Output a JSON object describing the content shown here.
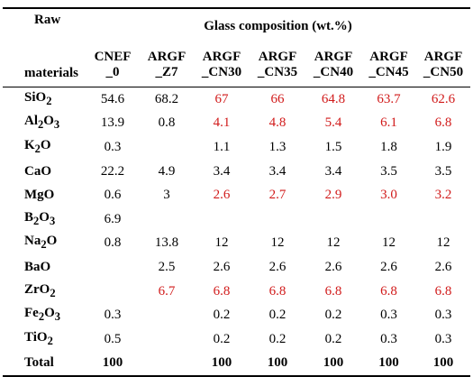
{
  "header": {
    "raw_line1": "Raw",
    "raw_line2": "materials",
    "group_title": "Glass composition (wt.%)",
    "columns": [
      [
        "CNEF",
        "_0"
      ],
      [
        "ARGF",
        "_Z7"
      ],
      [
        "ARGF",
        "_CN30"
      ],
      [
        "ARGF",
        "_CN35"
      ],
      [
        "ARGF",
        "_CN40"
      ],
      [
        "ARGF",
        "_CN45"
      ],
      [
        "ARGF",
        "_CN50"
      ]
    ]
  },
  "rows": [
    {
      "base": "SiO",
      "sub": "2",
      "values": [
        "54.6",
        "68.2",
        "67",
        "66",
        "64.8",
        "63.7",
        "62.6"
      ],
      "red": [
        false,
        false,
        true,
        true,
        true,
        true,
        true
      ]
    },
    {
      "base": "Al",
      "sub": "2",
      "base2": "O",
      "sub2": "3",
      "values": [
        "13.9",
        "0.8",
        "4.1",
        "4.8",
        "5.4",
        "6.1",
        "6.8"
      ],
      "red": [
        false,
        false,
        true,
        true,
        true,
        true,
        true
      ]
    },
    {
      "base": "K",
      "sub": "2",
      "base2": "O",
      "values": [
        "0.3",
        "",
        "1.1",
        "1.3",
        "1.5",
        "1.8",
        "1.9"
      ],
      "red": [
        false,
        false,
        false,
        false,
        false,
        false,
        false
      ]
    },
    {
      "base": "CaO",
      "values": [
        "22.2",
        "4.9",
        "3.4",
        "3.4",
        "3.4",
        "3.5",
        "3.5"
      ],
      "red": [
        false,
        false,
        false,
        false,
        false,
        false,
        false
      ]
    },
    {
      "base": "MgO",
      "values": [
        "0.6",
        "3",
        "2.6",
        "2.7",
        "2.9",
        "3.0",
        "3.2"
      ],
      "red": [
        false,
        false,
        true,
        true,
        true,
        true,
        true
      ]
    },
    {
      "base": "B",
      "sub": "2",
      "base2": "O",
      "sub2": "3",
      "values": [
        "6.9",
        "",
        "",
        "",
        "",
        "",
        ""
      ],
      "red": [
        false,
        false,
        false,
        false,
        false,
        false,
        false
      ]
    },
    {
      "base": "Na",
      "sub": "2",
      "base2": "O",
      "values": [
        "0.8",
        "13.8",
        "12",
        "12",
        "12",
        "12",
        "12"
      ],
      "red": [
        false,
        false,
        false,
        false,
        false,
        false,
        false
      ]
    },
    {
      "base": "BaO",
      "values": [
        "",
        "2.5",
        "2.6",
        "2.6",
        "2.6",
        "2.6",
        "2.6"
      ],
      "red": [
        false,
        false,
        false,
        false,
        false,
        false,
        false
      ]
    },
    {
      "base": "ZrO",
      "sub": "2",
      "values": [
        "",
        "6.7",
        "6.8",
        "6.8",
        "6.8",
        "6.8",
        "6.8"
      ],
      "red": [
        false,
        true,
        true,
        true,
        true,
        true,
        true
      ]
    },
    {
      "base": "Fe",
      "sub": "2",
      "base2": "O",
      "sub2": "3",
      "values": [
        "0.3",
        "",
        "0.2",
        "0.2",
        "0.2",
        "0.3",
        "0.3"
      ],
      "red": [
        false,
        false,
        false,
        false,
        false,
        false,
        false
      ]
    },
    {
      "base": "TiO",
      "sub": "2",
      "values": [
        "0.5",
        "",
        "0.2",
        "0.2",
        "0.2",
        "0.3",
        "0.3"
      ],
      "red": [
        false,
        false,
        false,
        false,
        false,
        false,
        false
      ]
    }
  ],
  "total": {
    "label": "Total",
    "values": [
      "100",
      "",
      "100",
      "100",
      "100",
      "100",
      "100"
    ]
  },
  "colors": {
    "highlight": "#d11a1a",
    "text": "#000000"
  }
}
